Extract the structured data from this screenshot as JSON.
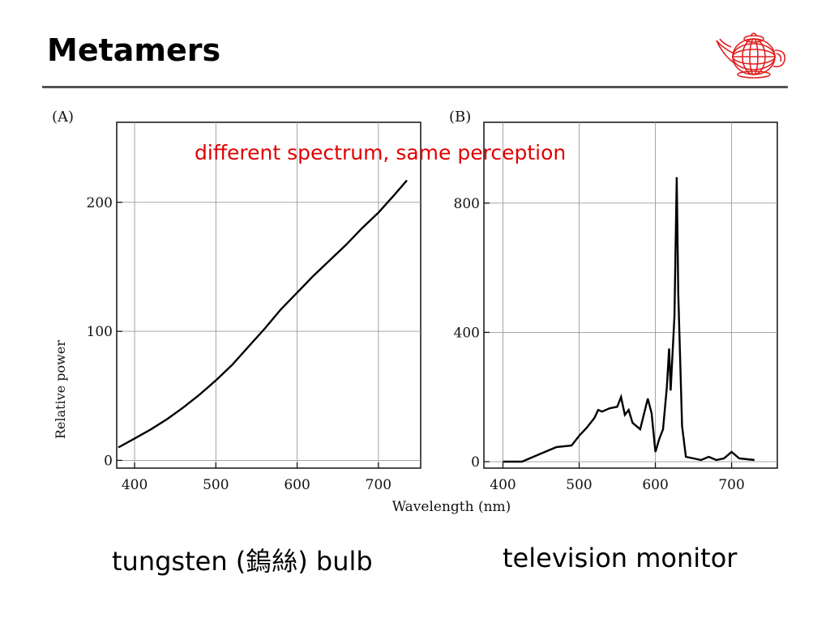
{
  "slide": {
    "title": "Metamers",
    "logo_icon": "wireframe-teapot-icon",
    "caption_left": "tungsten (鎢絲) bulb",
    "caption_right": "television monitor",
    "overlay_text": "different spectrum, same perception",
    "colors": {
      "overlay": "#e00000",
      "rule": "#555555",
      "logo": "#e02020"
    }
  },
  "chart_data": [
    {
      "type": "line",
      "panel_label": "(A)",
      "xlabel": "Wavelength (nm)",
      "ylabel": "Relative power",
      "xlim": [
        378,
        752
      ],
      "ylim": [
        -6,
        262
      ],
      "xticks": [
        400,
        500,
        600,
        700
      ],
      "yticks": [
        0,
        100,
        200
      ],
      "grid": true,
      "series": [
        {
          "x": [
            380,
            400,
            420,
            440,
            460,
            480,
            500,
            520,
            540,
            560,
            580,
            600,
            620,
            640,
            660,
            680,
            700,
            720,
            735
          ],
          "y": [
            10,
            17,
            24,
            32,
            41,
            51,
            62,
            74,
            88,
            102,
            117,
            130,
            143,
            155,
            167,
            180,
            192,
            206,
            217
          ]
        }
      ]
    },
    {
      "type": "line",
      "panel_label": "(B)",
      "xlabel": "Wavelength (nm)",
      "ylabel": "",
      "xlim": [
        375,
        760
      ],
      "ylim": [
        -20,
        1050
      ],
      "xticks": [
        400,
        500,
        600,
        700
      ],
      "yticks": [
        0,
        400,
        800
      ],
      "grid": true,
      "series": [
        {
          "x": [
            400,
            425,
            450,
            470,
            490,
            500,
            510,
            520,
            525,
            530,
            540,
            550,
            555,
            560,
            565,
            570,
            580,
            590,
            595,
            600,
            605,
            610,
            615,
            618,
            620,
            625,
            628,
            630,
            635,
            640,
            650,
            660,
            670,
            680,
            690,
            700,
            710,
            730
          ],
          "y": [
            0,
            0,
            25,
            45,
            50,
            80,
            105,
            135,
            160,
            155,
            165,
            170,
            200,
            145,
            160,
            120,
            100,
            195,
            150,
            30,
            70,
            100,
            230,
            350,
            220,
            450,
            880,
            520,
            110,
            15,
            10,
            5,
            15,
            5,
            10,
            30,
            10,
            5
          ]
        }
      ]
    }
  ]
}
